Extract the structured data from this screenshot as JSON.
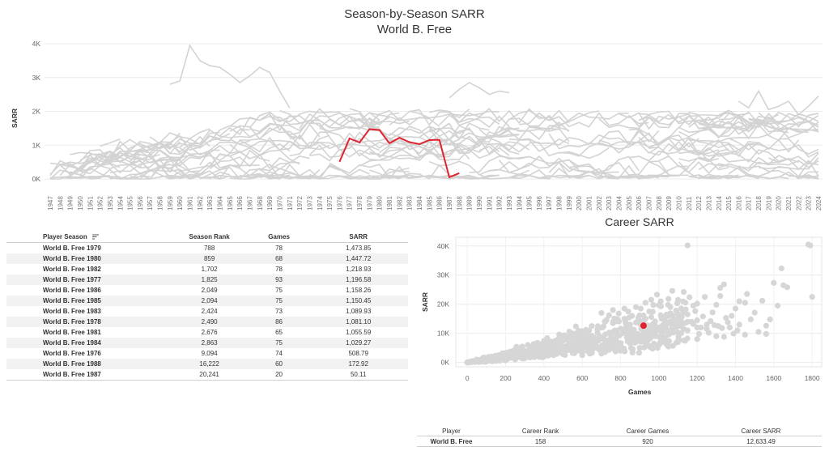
{
  "season_title": "Season-by-Season SARR",
  "season_subtitle": "World B. Free",
  "career_title": "Career SARR",
  "colors": {
    "highlight": "#e0242f",
    "background_lines": "#d3d3d3",
    "background_points": "#d6d6d6"
  },
  "chart_data": [
    {
      "type": "line",
      "title": "Season-by-Season SARR",
      "subtitle": "World B. Free",
      "ylabel": "SARR",
      "xlabel": "",
      "ylim": [
        0,
        4000
      ],
      "yticks": [
        0,
        1000,
        2000,
        3000,
        4000
      ],
      "ytick_labels": [
        "0K",
        "1K",
        "2K",
        "3K",
        "4K"
      ],
      "xlim": [
        1947,
        2024
      ],
      "x_tick_labels": [
        "1947",
        "1948",
        "1949",
        "1950",
        "1951",
        "1952",
        "1953",
        "1954",
        "1955",
        "1956",
        "1957",
        "1958",
        "1959",
        "1960",
        "1961",
        "1962",
        "1963",
        "1964",
        "1965",
        "1966",
        "1967",
        "1968",
        "1969",
        "1970",
        "1971",
        "1972",
        "1973",
        "1974",
        "1975",
        "1976",
        "1977",
        "1978",
        "1979",
        "1980",
        "1981",
        "1982",
        "1983",
        "1984",
        "1985",
        "1986",
        "1987",
        "1988",
        "1989",
        "1990",
        "1991",
        "1992",
        "1993",
        "1994",
        "1995",
        "1996",
        "1997",
        "1998",
        "1999",
        "2000",
        "2001",
        "2002",
        "2003",
        "2004",
        "2005",
        "2006",
        "2007",
        "2008",
        "2009",
        "2010",
        "2011",
        "2012",
        "2013",
        "2014",
        "2015",
        "2016",
        "2017",
        "2018",
        "2019",
        "2020",
        "2021",
        "2022",
        "2023",
        "2024"
      ],
      "grid": true,
      "series": [
        {
          "x": [
            1976,
            1977,
            1978,
            1979,
            1980,
            1981,
            1982,
            1983,
            1984,
            1985,
            1986,
            1987,
            1988
          ],
          "y": [
            508.79,
            1196.58,
            1081.1,
            1473.85,
            1447.72,
            1055.59,
            1218.93,
            1089.93,
            1029.27,
            1150.45,
            1158.26,
            50.11,
            172.92
          ],
          "color": "#e0242f"
        }
      ]
    },
    {
      "type": "scatter",
      "title": "Career SARR",
      "xlabel": "Games",
      "ylabel": "SARR",
      "xlim": [
        -60,
        1850
      ],
      "ylim": [
        -1500,
        43000
      ],
      "xticks": [
        0,
        200,
        400,
        600,
        800,
        1000,
        1200,
        1400,
        1600,
        1800
      ],
      "yticks": [
        0,
        10000,
        20000,
        30000,
        40000
      ],
      "ytick_labels": [
        "0K",
        "10K",
        "20K",
        "30K",
        "40K"
      ],
      "grid": true,
      "highlight": {
        "x": 920,
        "y": 12633.49,
        "color": "#e0242f"
      },
      "background_points": [
        [
          1790,
          40200
        ],
        [
          1780,
          40500
        ],
        [
          1150,
          40200
        ],
        [
          1800,
          22500
        ],
        [
          1600,
          27300
        ],
        [
          1650,
          26500
        ],
        [
          1670,
          25800
        ],
        [
          1640,
          32300
        ],
        [
          1560,
          9800
        ],
        [
          1500,
          17100
        ],
        [
          1480,
          14800
        ],
        [
          1420,
          21000
        ],
        [
          1460,
          23500
        ],
        [
          1340,
          26800
        ],
        [
          1320,
          25600
        ],
        [
          1280,
          17200
        ],
        [
          1300,
          19800
        ],
        [
          1200,
          20200
        ],
        [
          1200,
          14500
        ],
        [
          1240,
          22500
        ],
        [
          1160,
          22400
        ],
        [
          1100,
          21500
        ],
        [
          1050,
          21800
        ],
        [
          1000,
          19700
        ],
        [
          1060,
          16900
        ],
        [
          1120,
          15600
        ],
        [
          1140,
          18200
        ],
        [
          1180,
          13200
        ],
        [
          1210,
          9800
        ],
        [
          1260,
          10200
        ],
        [
          1310,
          12500
        ],
        [
          1380,
          16000
        ],
        [
          1400,
          18500
        ],
        [
          1420,
          13000
        ],
        [
          1450,
          9500
        ],
        [
          1520,
          10500
        ],
        [
          1560,
          12600
        ],
        [
          1360,
          13800
        ],
        [
          1340,
          8800
        ],
        [
          1040,
          16400
        ],
        [
          1080,
          14400
        ],
        [
          950,
          17500
        ],
        [
          905,
          18500
        ],
        [
          860,
          16000
        ],
        [
          820,
          15000
        ],
        [
          790,
          16800
        ],
        [
          760,
          13500
        ],
        [
          700,
          12000
        ],
        [
          680,
          10200
        ],
        [
          640,
          9000
        ],
        [
          600,
          10800
        ],
        [
          580,
          9500
        ],
        [
          550,
          7000
        ],
        [
          520,
          8000
        ],
        [
          480,
          9600
        ],
        [
          460,
          6500
        ],
        [
          430,
          5200
        ],
        [
          410,
          5800
        ],
        [
          390,
          4700
        ],
        [
          360,
          3900
        ],
        [
          340,
          4500
        ],
        [
          320,
          3500
        ],
        [
          300,
          3000
        ],
        [
          280,
          2500
        ],
        [
          260,
          3100
        ],
        [
          240,
          2000
        ],
        [
          220,
          2600
        ],
        [
          200,
          1600
        ],
        [
          180,
          1800
        ],
        [
          160,
          1300
        ],
        [
          140,
          1000
        ],
        [
          120,
          800
        ],
        [
          100,
          600
        ],
        [
          80,
          400
        ],
        [
          60,
          300
        ],
        [
          40,
          150
        ],
        [
          20,
          80
        ],
        [
          10,
          40
        ],
        [
          5,
          10
        ],
        [
          0,
          0
        ],
        [
          30,
          200
        ],
        [
          50,
          350
        ],
        [
          70,
          250
        ],
        [
          90,
          500
        ],
        [
          110,
          700
        ],
        [
          130,
          900
        ],
        [
          150,
          1100
        ],
        [
          170,
          1000
        ],
        [
          190,
          1400
        ],
        [
          210,
          1200
        ],
        [
          230,
          1700
        ],
        [
          250,
          2200
        ],
        [
          270,
          1900
        ],
        [
          290,
          2400
        ],
        [
          310,
          2800
        ],
        [
          330,
          2600
        ],
        [
          350,
          3200
        ],
        [
          370,
          3600
        ],
        [
          380,
          2900
        ],
        [
          400,
          3300
        ],
        [
          420,
          4000
        ],
        [
          440,
          3700
        ],
        [
          450,
          4400
        ],
        [
          470,
          3800
        ],
        [
          490,
          5000
        ],
        [
          500,
          4200
        ],
        [
          510,
          5500
        ],
        [
          530,
          4800
        ],
        [
          540,
          6200
        ],
        [
          560,
          5200
        ],
        [
          570,
          6800
        ],
        [
          590,
          6000
        ],
        [
          610,
          7400
        ],
        [
          620,
          6500
        ],
        [
          630,
          8000
        ],
        [
          650,
          7200
        ],
        [
          660,
          8600
        ],
        [
          670,
          7800
        ],
        [
          690,
          9000
        ],
        [
          710,
          8200
        ],
        [
          720,
          9600
        ],
        [
          730,
          7500
        ],
        [
          740,
          10200
        ],
        [
          750,
          8800
        ],
        [
          770,
          11000
        ],
        [
          780,
          9300
        ],
        [
          800,
          11600
        ],
        [
          810,
          10000
        ],
        [
          830,
          12300
        ],
        [
          840,
          10500
        ],
        [
          850,
          13000
        ],
        [
          870,
          11200
        ],
        [
          880,
          13700
        ],
        [
          890,
          9800
        ],
        [
          900,
          14200
        ],
        [
          910,
          11800
        ],
        [
          930,
          15000
        ],
        [
          940,
          12300
        ],
        [
          960,
          15600
        ],
        [
          970,
          13000
        ],
        [
          980,
          14100
        ],
        [
          990,
          11000
        ],
        [
          1010,
          16200
        ],
        [
          1020,
          12800
        ],
        [
          1030,
          14900
        ],
        [
          1070,
          12200
        ],
        [
          1090,
          17800
        ],
        [
          1110,
          13500
        ],
        [
          1130,
          11500
        ],
        [
          1150,
          16500
        ],
        [
          1170,
          14000
        ],
        [
          1190,
          17600
        ],
        [
          1220,
          12000
        ],
        [
          1230,
          15800
        ],
        [
          1250,
          11500
        ],
        [
          1270,
          14200
        ],
        [
          1290,
          12800
        ],
        [
          1330,
          11800
        ],
        [
          1350,
          15300
        ],
        [
          1370,
          12000
        ],
        [
          1390,
          9900
        ],
        [
          1410,
          11000
        ],
        [
          400,
          2000
        ],
        [
          450,
          2500
        ],
        [
          500,
          2800
        ],
        [
          550,
          3200
        ],
        [
          600,
          3600
        ],
        [
          650,
          4000
        ],
        [
          700,
          4600
        ],
        [
          750,
          5200
        ],
        [
          800,
          5800
        ],
        [
          850,
          6500
        ],
        [
          900,
          7200
        ],
        [
          950,
          8000
        ],
        [
          1000,
          8800
        ],
        [
          1050,
          9500
        ],
        [
          1100,
          10300
        ],
        [
          1150,
          11000
        ],
        [
          1200,
          12000
        ],
        [
          1250,
          13000
        ],
        [
          300,
          1500
        ],
        [
          350,
          1800
        ],
        [
          250,
          1000
        ],
        [
          200,
          700
        ],
        [
          150,
          500
        ],
        [
          100,
          300
        ],
        [
          600,
          2500
        ],
        [
          700,
          3000
        ],
        [
          800,
          4000
        ],
        [
          900,
          5000
        ],
        [
          1000,
          6000
        ],
        [
          1100,
          7000
        ],
        [
          1200,
          8000
        ],
        [
          1300,
          9000
        ],
        [
          650,
          12500
        ],
        [
          720,
          14000
        ],
        [
          780,
          7000
        ],
        [
          850,
          9000
        ],
        [
          920,
          10000
        ],
        [
          980,
          9000
        ],
        [
          1040,
          11500
        ],
        [
          560,
          9200
        ],
        [
          620,
          11200
        ],
        [
          480,
          7300
        ],
        [
          530,
          6400
        ],
        [
          440,
          6000
        ],
        [
          380,
          5200
        ],
        [
          330,
          4200
        ],
        [
          290,
          3600
        ],
        [
          260,
          2900
        ],
        [
          230,
          2300
        ],
        [
          210,
          1900
        ],
        [
          190,
          1000
        ],
        [
          170,
          600
        ],
        [
          130,
          400
        ],
        [
          90,
          200
        ],
        [
          60,
          100
        ],
        [
          700,
          17000
        ],
        [
          740,
          16200
        ],
        [
          820,
          18500
        ],
        [
          760,
          18000
        ],
        [
          880,
          19000
        ],
        [
          930,
          20500
        ],
        [
          990,
          23300
        ],
        [
          1070,
          24600
        ],
        [
          1130,
          24200
        ],
        [
          1180,
          19500
        ],
        [
          1060,
          19000
        ],
        [
          1010,
          21000
        ],
        [
          960,
          21500
        ],
        [
          840,
          17500
        ],
        [
          1320,
          22800
        ],
        [
          1450,
          20500
        ],
        [
          1540,
          21200
        ],
        [
          1580,
          14800
        ],
        [
          1620,
          19500
        ]
      ]
    }
  ],
  "season_table": {
    "headers": {
      "player_season": "Player Season",
      "season_rank": "Season Rank",
      "games": "Games",
      "sarr": "SARR"
    },
    "rows": [
      {
        "player_season": "World B. Free 1979",
        "season_rank": "788",
        "games": "78",
        "sarr": "1,473.85"
      },
      {
        "player_season": "World B. Free 1980",
        "season_rank": "859",
        "games": "68",
        "sarr": "1,447.72"
      },
      {
        "player_season": "World B. Free 1982",
        "season_rank": "1,702",
        "games": "78",
        "sarr": "1,218.93"
      },
      {
        "player_season": "World B. Free 1977",
        "season_rank": "1,825",
        "games": "93",
        "sarr": "1,196.58"
      },
      {
        "player_season": "World B. Free 1986",
        "season_rank": "2,049",
        "games": "75",
        "sarr": "1,158.26"
      },
      {
        "player_season": "World B. Free 1985",
        "season_rank": "2,094",
        "games": "75",
        "sarr": "1,150.45"
      },
      {
        "player_season": "World B. Free 1983",
        "season_rank": "2,424",
        "games": "73",
        "sarr": "1,089.93"
      },
      {
        "player_season": "World B. Free 1978",
        "season_rank": "2,490",
        "games": "86",
        "sarr": "1,081.10"
      },
      {
        "player_season": "World B. Free 1981",
        "season_rank": "2,676",
        "games": "65",
        "sarr": "1,055.59"
      },
      {
        "player_season": "World B. Free 1984",
        "season_rank": "2,863",
        "games": "75",
        "sarr": "1,029.27"
      },
      {
        "player_season": "World B. Free 1976",
        "season_rank": "9,094",
        "games": "74",
        "sarr": "508.79"
      },
      {
        "player_season": "World B. Free 1988",
        "season_rank": "16,222",
        "games": "60",
        "sarr": "172.92"
      },
      {
        "player_season": "World B. Free 1987",
        "season_rank": "20,241",
        "games": "20",
        "sarr": "50.11"
      }
    ]
  },
  "career_table": {
    "headers": {
      "player": "Player",
      "career_rank": "Career Rank",
      "career_games": "Career Games",
      "career_sarr": "Career SARR"
    },
    "row": {
      "player": "World B. Free",
      "career_rank": "158",
      "career_games": "920",
      "career_sarr": "12,633.49"
    }
  }
}
